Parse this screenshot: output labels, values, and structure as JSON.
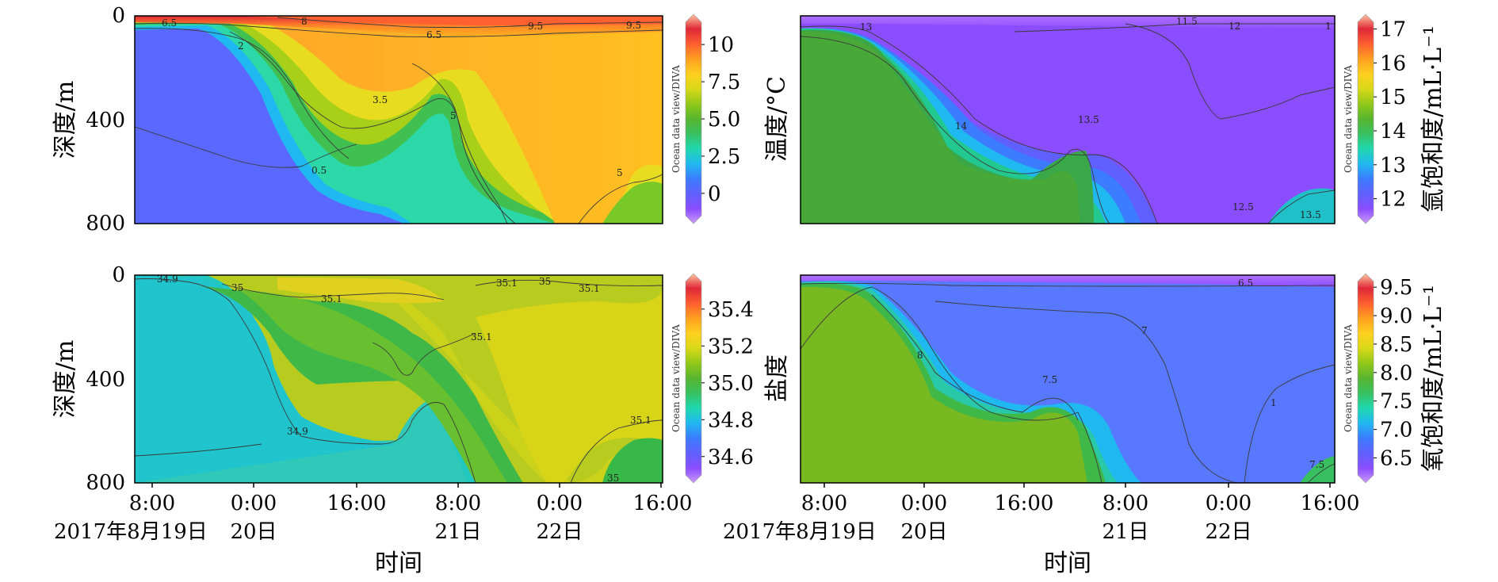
{
  "colors": {
    "colormap": [
      "#cc99ff",
      "#8a4dff",
      "#6060ff",
      "#3c7cff",
      "#20b8f0",
      "#20d8b0",
      "#38c060",
      "#58b430",
      "#90c818",
      "#d8d818",
      "#ffd020",
      "#ffa020",
      "#ff6030",
      "#e02838",
      "#ffc8a0"
    ],
    "contour_line": "#3a3a3a",
    "frame": "#000000"
  },
  "watermark": "Ocean data view/DIVA",
  "chart_data": [
    {
      "type": "heatmap",
      "panel": "temperature",
      "ylabel": "深度/m",
      "yticks": [
        "0",
        "400",
        "800"
      ],
      "ylim": [
        800,
        0
      ],
      "colorbar": {
        "label": "温度/°C",
        "ticks": [
          "10",
          "7.5",
          "5.0",
          "2.5",
          "0"
        ],
        "range": [
          -1.5,
          11.5
        ]
      },
      "contour_labels": [
        "6.5",
        "8",
        "6.5",
        "9.5",
        "9.5",
        "2",
        "3.5",
        "5",
        "0.5",
        "5"
      ]
    },
    {
      "type": "heatmap",
      "panel": "argon_saturation",
      "colorbar": {
        "label": "氩饱和度/mL·L⁻¹",
        "ticks": [
          "17",
          "16",
          "15",
          "14",
          "13",
          "12"
        ],
        "range": [
          11.5,
          17.2
        ]
      },
      "contour_labels": [
        "13",
        "11.5",
        "12",
        "1",
        "14",
        "13.5",
        "12.5",
        "13.5"
      ]
    },
    {
      "type": "heatmap",
      "panel": "salinity",
      "ylabel": "深度/m",
      "yticks": [
        "0",
        "400",
        "800"
      ],
      "ylim": [
        800,
        0
      ],
      "colorbar": {
        "label": "盐度",
        "ticks": [
          "35.4",
          "35.2",
          "35.0",
          "34.8",
          "34.6"
        ],
        "range": [
          34.5,
          35.55
        ]
      },
      "contour_labels": [
        "34.9",
        "35",
        "35.1",
        "35.1",
        "35",
        "35.1",
        "35.1",
        "35.1",
        "34.9",
        "35"
      ],
      "xticks": [
        "8:00",
        "0:00",
        "16:00",
        "8:00",
        "0:00",
        "16:00"
      ],
      "date_labels": [
        "2017年8月19日",
        "20日",
        "21日",
        "22日"
      ],
      "xlabel": "时间"
    },
    {
      "type": "heatmap",
      "panel": "oxygen_saturation",
      "colorbar": {
        "label": "氧饱和度/mL·L⁻¹",
        "ticks": [
          "9.5",
          "9.0",
          "8.5",
          "8.0",
          "7.5",
          "7.0",
          "6.5"
        ],
        "range": [
          6.2,
          9.6
        ]
      },
      "contour_labels": [
        "6.5",
        "7",
        "8",
        "7.5",
        "1",
        "7.5"
      ],
      "xticks": [
        "8:00",
        "0:00",
        "16:00",
        "8:00",
        "0:00",
        "16:00"
      ],
      "date_labels": [
        "2017年8月19日",
        "20日",
        "21日",
        "22日"
      ],
      "xlabel": "时间"
    }
  ]
}
